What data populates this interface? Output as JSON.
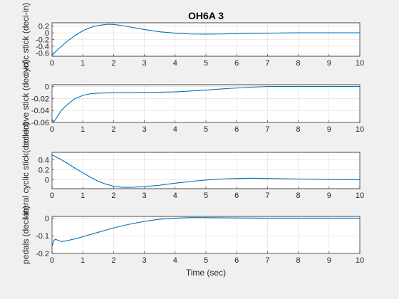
{
  "chart_data": [
    {
      "type": "line",
      "title": "OH6A 3",
      "xlabel": "",
      "ylabel": "cyclic stick (deci-in)",
      "xlim": [
        0,
        10
      ],
      "ylim": [
        -0.7,
        0.3
      ],
      "xticks": [
        "0",
        "1",
        "2",
        "3",
        "4",
        "5",
        "6",
        "7",
        "8",
        "9",
        "10"
      ],
      "yticks": [
        -0.6,
        -0.4,
        -0.2,
        0,
        0.2
      ],
      "ytick_labels": [
        "-0.6",
        "-0.4",
        "-0.2",
        "0",
        "0.2"
      ],
      "grid": true,
      "series": [
        {
          "x": [
            0,
            0.1,
            0.2,
            0.35,
            0.5,
            0.75,
            1,
            1.25,
            1.5,
            1.75,
            1.85,
            2,
            2.25,
            2.5,
            3,
            3.5,
            4,
            4.5,
            5,
            5.5,
            6,
            6.5,
            7,
            7.5,
            8,
            9,
            10
          ],
          "values": [
            -0.68,
            -0.58,
            -0.49,
            -0.37,
            -0.25,
            -0.08,
            0.06,
            0.16,
            0.22,
            0.25,
            0.255,
            0.25,
            0.22,
            0.18,
            0.1,
            0.03,
            -0.01,
            -0.035,
            -0.04,
            -0.035,
            -0.025,
            -0.015,
            -0.01,
            -0.005,
            0,
            0,
            0
          ]
        }
      ]
    },
    {
      "type": "line",
      "title": "",
      "xlabel": "",
      "ylabel": "collective stick (deci-in)",
      "xlim": [
        0,
        10
      ],
      "ylim": [
        -0.06,
        0.003
      ],
      "xticks": [
        "0",
        "1",
        "2",
        "3",
        "4",
        "5",
        "6",
        "7",
        "8",
        "9",
        "10"
      ],
      "yticks": [
        -0.06,
        -0.04,
        -0.02,
        0
      ],
      "ytick_labels": [
        "-0.06",
        "-0.04",
        "-0.02",
        "0"
      ],
      "grid": true,
      "series": [
        {
          "x": [
            0,
            0.05,
            0.1,
            0.2,
            0.3,
            0.5,
            0.75,
            1,
            1.25,
            1.5,
            2,
            2.5,
            3,
            3.5,
            4,
            4.5,
            5,
            5.5,
            6,
            6.5,
            7,
            7.5,
            8,
            9,
            10
          ],
          "values": [
            -0.055,
            -0.059,
            -0.056,
            -0.048,
            -0.04,
            -0.03,
            -0.02,
            -0.015,
            -0.012,
            -0.011,
            -0.0105,
            -0.0105,
            -0.01,
            -0.0095,
            -0.009,
            -0.0075,
            -0.006,
            -0.004,
            -0.0025,
            -0.001,
            0,
            0,
            0,
            0,
            0
          ]
        }
      ]
    },
    {
      "type": "line",
      "title": "",
      "xlabel": "",
      "ylabel": "lateral cyclic stick(deci-in)",
      "xlim": [
        0,
        10
      ],
      "ylim": [
        -0.18,
        0.55
      ],
      "xticks": [
        "0",
        "1",
        "2",
        "3",
        "4",
        "5",
        "6",
        "7",
        "8",
        "9",
        "10"
      ],
      "yticks": [
        0,
        0.2,
        0.4
      ],
      "ytick_labels": [
        "0",
        "0.2",
        "0.4"
      ],
      "grid": true,
      "series": [
        {
          "x": [
            0,
            0.25,
            0.5,
            0.75,
            1,
            1.25,
            1.5,
            1.75,
            2,
            2.25,
            2.5,
            3,
            3.5,
            4,
            4.5,
            5,
            5.5,
            6,
            6.5,
            7,
            7.5,
            8,
            9,
            10
          ],
          "values": [
            0.5,
            0.42,
            0.33,
            0.23,
            0.14,
            0.05,
            -0.03,
            -0.09,
            -0.13,
            -0.15,
            -0.155,
            -0.14,
            -0.11,
            -0.07,
            -0.035,
            -0.005,
            0.015,
            0.025,
            0.03,
            0.025,
            0.02,
            0.015,
            0.005,
            0
          ]
        }
      ]
    },
    {
      "type": "line",
      "title": "",
      "xlabel": "Time (sec)",
      "ylabel": "pedals (deci-in)",
      "xlim": [
        0,
        10
      ],
      "ylim": [
        -0.2,
        0.01
      ],
      "xticks": [
        "0",
        "1",
        "2",
        "3",
        "4",
        "5",
        "6",
        "7",
        "8",
        "9",
        "10"
      ],
      "yticks": [
        -0.2,
        -0.1,
        0
      ],
      "ytick_labels": [
        "-0.2",
        "-0.1",
        "0"
      ],
      "grid": true,
      "series": [
        {
          "x": [
            0,
            0.05,
            0.1,
            0.15,
            0.2,
            0.3,
            0.4,
            0.5,
            0.75,
            1,
            1.5,
            2,
            2.5,
            3,
            3.5,
            4,
            4.5,
            5,
            5.5,
            6,
            7,
            8,
            9,
            10
          ],
          "values": [
            -0.16,
            -0.13,
            -0.12,
            -0.122,
            -0.127,
            -0.132,
            -0.13,
            -0.127,
            -0.117,
            -0.105,
            -0.08,
            -0.055,
            -0.035,
            -0.018,
            -0.006,
            0,
            0.003,
            0.003,
            0.002,
            0.001,
            0,
            0,
            0,
            0
          ]
        }
      ]
    }
  ],
  "colors": {
    "line": "#0072bd"
  }
}
